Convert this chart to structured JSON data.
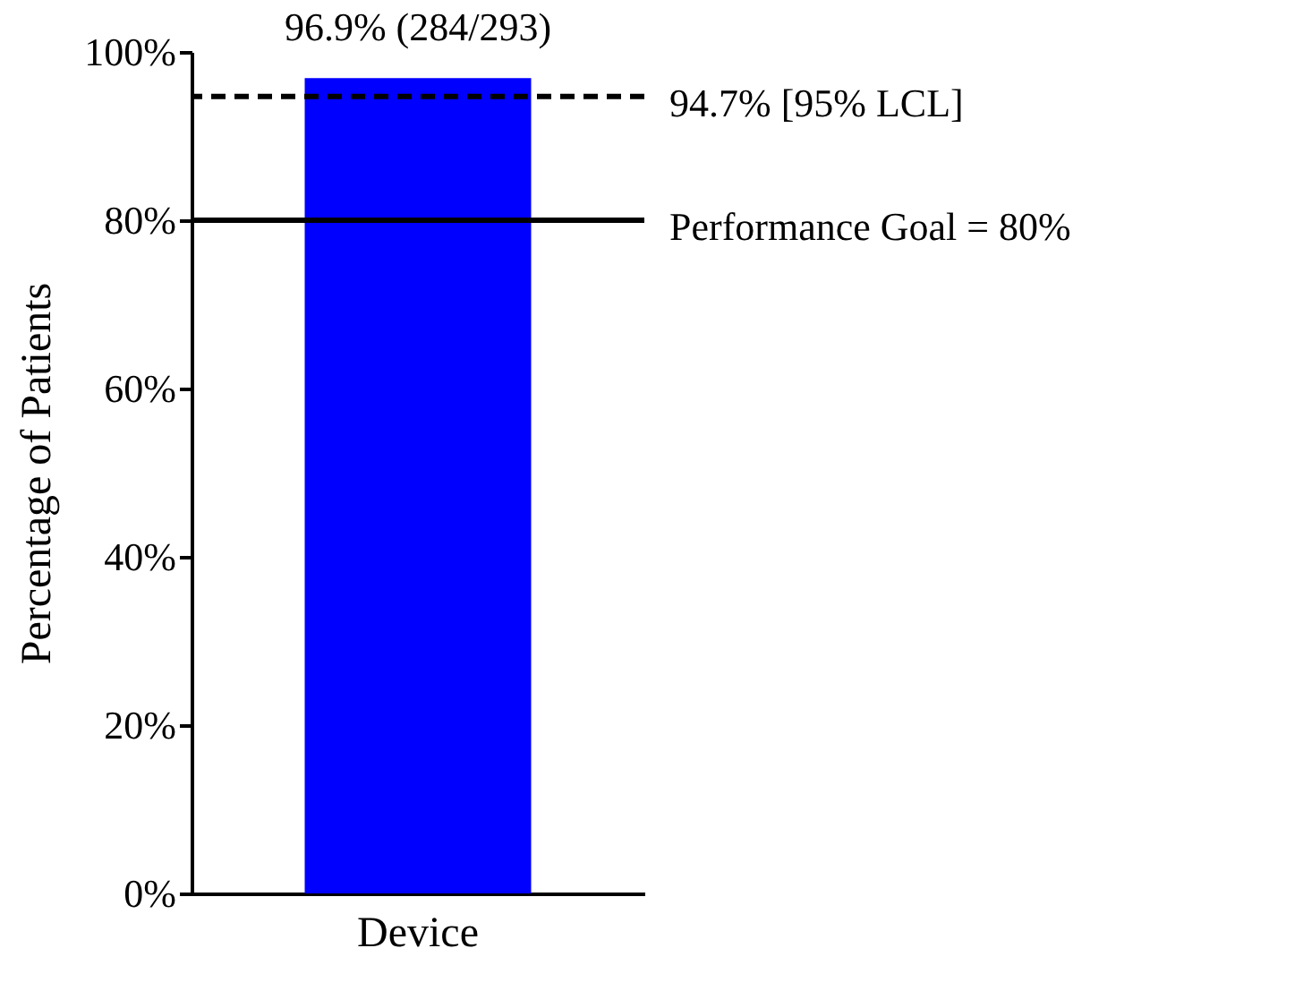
{
  "chart_data": {
    "type": "bar",
    "ylabel": "Percentage of Patients",
    "categories": [
      "Device"
    ],
    "series": [
      {
        "color": "#0000ff",
        "values": [
          96.9
        ],
        "value_labels": [
          "96.9% (284/293)"
        ]
      }
    ],
    "ylim": [
      0,
      100
    ],
    "yticks": [
      {
        "value": 0,
        "label": "0%"
      },
      {
        "value": 20,
        "label": "20%"
      },
      {
        "value": 40,
        "label": "40%"
      },
      {
        "value": 60,
        "label": "60%"
      },
      {
        "value": 80,
        "label": "80%"
      },
      {
        "value": 100,
        "label": "100%"
      }
    ],
    "ref_lines": [
      {
        "axis": "y",
        "value": 94.7,
        "label": "94.7% [95% LCL]",
        "line_style": "dashed",
        "color": "#000000"
      },
      {
        "axis": "y",
        "value": 80,
        "label": "Performance Goal = 80%",
        "line_style": "solid",
        "color": "#000000"
      }
    ]
  }
}
